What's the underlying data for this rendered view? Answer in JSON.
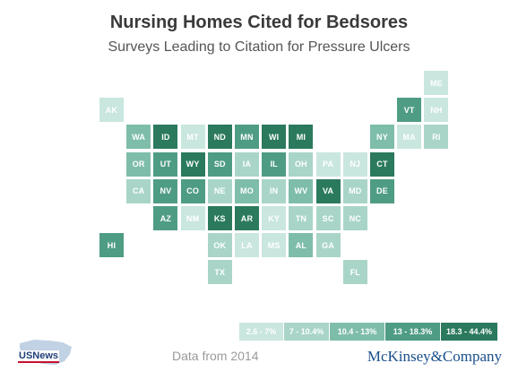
{
  "header": {
    "title": "Nursing Homes Cited for Bedsores",
    "subtitle": "Surveys Leading to Citation for Pressure Ulcers"
  },
  "chart_data": {
    "type": "tile-map",
    "title": "Nursing Homes Cited for Bedsores",
    "subtitle": "Surveys Leading to Citation for Pressure Ulcers",
    "legend": {
      "labels": [
        "2.6 - 7%",
        "7 - 10.4%",
        "10.4 - 13%",
        "13 - 18.3%",
        "18.3 - 44.4%"
      ],
      "colors": [
        "#c9e6df",
        "#a9d5c8",
        "#7ebdaa",
        "#4f9c85",
        "#2b7a5e"
      ]
    },
    "states": [
      {
        "code": "ME",
        "col": 12,
        "row": 0,
        "bin": 0
      },
      {
        "code": "AK",
        "col": 0,
        "row": 1,
        "bin": 0
      },
      {
        "code": "VT",
        "col": 11,
        "row": 1,
        "bin": 3
      },
      {
        "code": "NH",
        "col": 12,
        "row": 1,
        "bin": 0
      },
      {
        "code": "WA",
        "col": 1,
        "row": 2,
        "bin": 2
      },
      {
        "code": "ID",
        "col": 2,
        "row": 2,
        "bin": 4
      },
      {
        "code": "MT",
        "col": 3,
        "row": 2,
        "bin": 0
      },
      {
        "code": "ND",
        "col": 4,
        "row": 2,
        "bin": 4
      },
      {
        "code": "MN",
        "col": 5,
        "row": 2,
        "bin": 3
      },
      {
        "code": "WI",
        "col": 6,
        "row": 2,
        "bin": 4
      },
      {
        "code": "MI",
        "col": 7,
        "row": 2,
        "bin": 4
      },
      {
        "code": "NY",
        "col": 10,
        "row": 2,
        "bin": 2
      },
      {
        "code": "MA",
        "col": 11,
        "row": 2,
        "bin": 0
      },
      {
        "code": "RI",
        "col": 12,
        "row": 2,
        "bin": 1
      },
      {
        "code": "OR",
        "col": 1,
        "row": 3,
        "bin": 2
      },
      {
        "code": "UT",
        "col": 2,
        "row": 3,
        "bin": 3
      },
      {
        "code": "WY",
        "col": 3,
        "row": 3,
        "bin": 4
      },
      {
        "code": "SD",
        "col": 4,
        "row": 3,
        "bin": 3
      },
      {
        "code": "IA",
        "col": 5,
        "row": 3,
        "bin": 1
      },
      {
        "code": "IL",
        "col": 6,
        "row": 3,
        "bin": 3
      },
      {
        "code": "OH",
        "col": 7,
        "row": 3,
        "bin": 1
      },
      {
        "code": "PA",
        "col": 8,
        "row": 3,
        "bin": 0
      },
      {
        "code": "NJ",
        "col": 9,
        "row": 3,
        "bin": 0
      },
      {
        "code": "CT",
        "col": 10,
        "row": 3,
        "bin": 4
      },
      {
        "code": "CA",
        "col": 1,
        "row": 4,
        "bin": 1
      },
      {
        "code": "NV",
        "col": 2,
        "row": 4,
        "bin": 3
      },
      {
        "code": "CO",
        "col": 3,
        "row": 4,
        "bin": 3
      },
      {
        "code": "NE",
        "col": 4,
        "row": 4,
        "bin": 1
      },
      {
        "code": "MO",
        "col": 5,
        "row": 4,
        "bin": 2
      },
      {
        "code": "IN",
        "col": 6,
        "row": 4,
        "bin": 1
      },
      {
        "code": "WV",
        "col": 7,
        "row": 4,
        "bin": 2
      },
      {
        "code": "VA",
        "col": 8,
        "row": 4,
        "bin": 4
      },
      {
        "code": "MD",
        "col": 9,
        "row": 4,
        "bin": 1
      },
      {
        "code": "DE",
        "col": 10,
        "row": 4,
        "bin": 3
      },
      {
        "code": "AZ",
        "col": 2,
        "row": 5,
        "bin": 3
      },
      {
        "code": "NM",
        "col": 3,
        "row": 5,
        "bin": 0
      },
      {
        "code": "KS",
        "col": 4,
        "row": 5,
        "bin": 4
      },
      {
        "code": "AR",
        "col": 5,
        "row": 5,
        "bin": 4
      },
      {
        "code": "KY",
        "col": 6,
        "row": 5,
        "bin": 0
      },
      {
        "code": "TN",
        "col": 7,
        "row": 5,
        "bin": 1
      },
      {
        "code": "SC",
        "col": 8,
        "row": 5,
        "bin": 1
      },
      {
        "code": "NC",
        "col": 9,
        "row": 5,
        "bin": 1
      },
      {
        "code": "HI",
        "col": 0,
        "row": 6,
        "bin": 3
      },
      {
        "code": "OK",
        "col": 4,
        "row": 6,
        "bin": 1
      },
      {
        "code": "LA",
        "col": 5,
        "row": 6,
        "bin": 0
      },
      {
        "code": "MS",
        "col": 6,
        "row": 6,
        "bin": 0
      },
      {
        "code": "AL",
        "col": 7,
        "row": 6,
        "bin": 2
      },
      {
        "code": "GA",
        "col": 8,
        "row": 6,
        "bin": 1
      },
      {
        "code": "TX",
        "col": 4,
        "row": 7,
        "bin": 1
      },
      {
        "code": "FL",
        "col": 9,
        "row": 7,
        "bin": 1
      }
    ]
  },
  "footer": {
    "note": "Data from 2014",
    "brand": "McKinsey&Company",
    "logo_text": "USNews"
  }
}
